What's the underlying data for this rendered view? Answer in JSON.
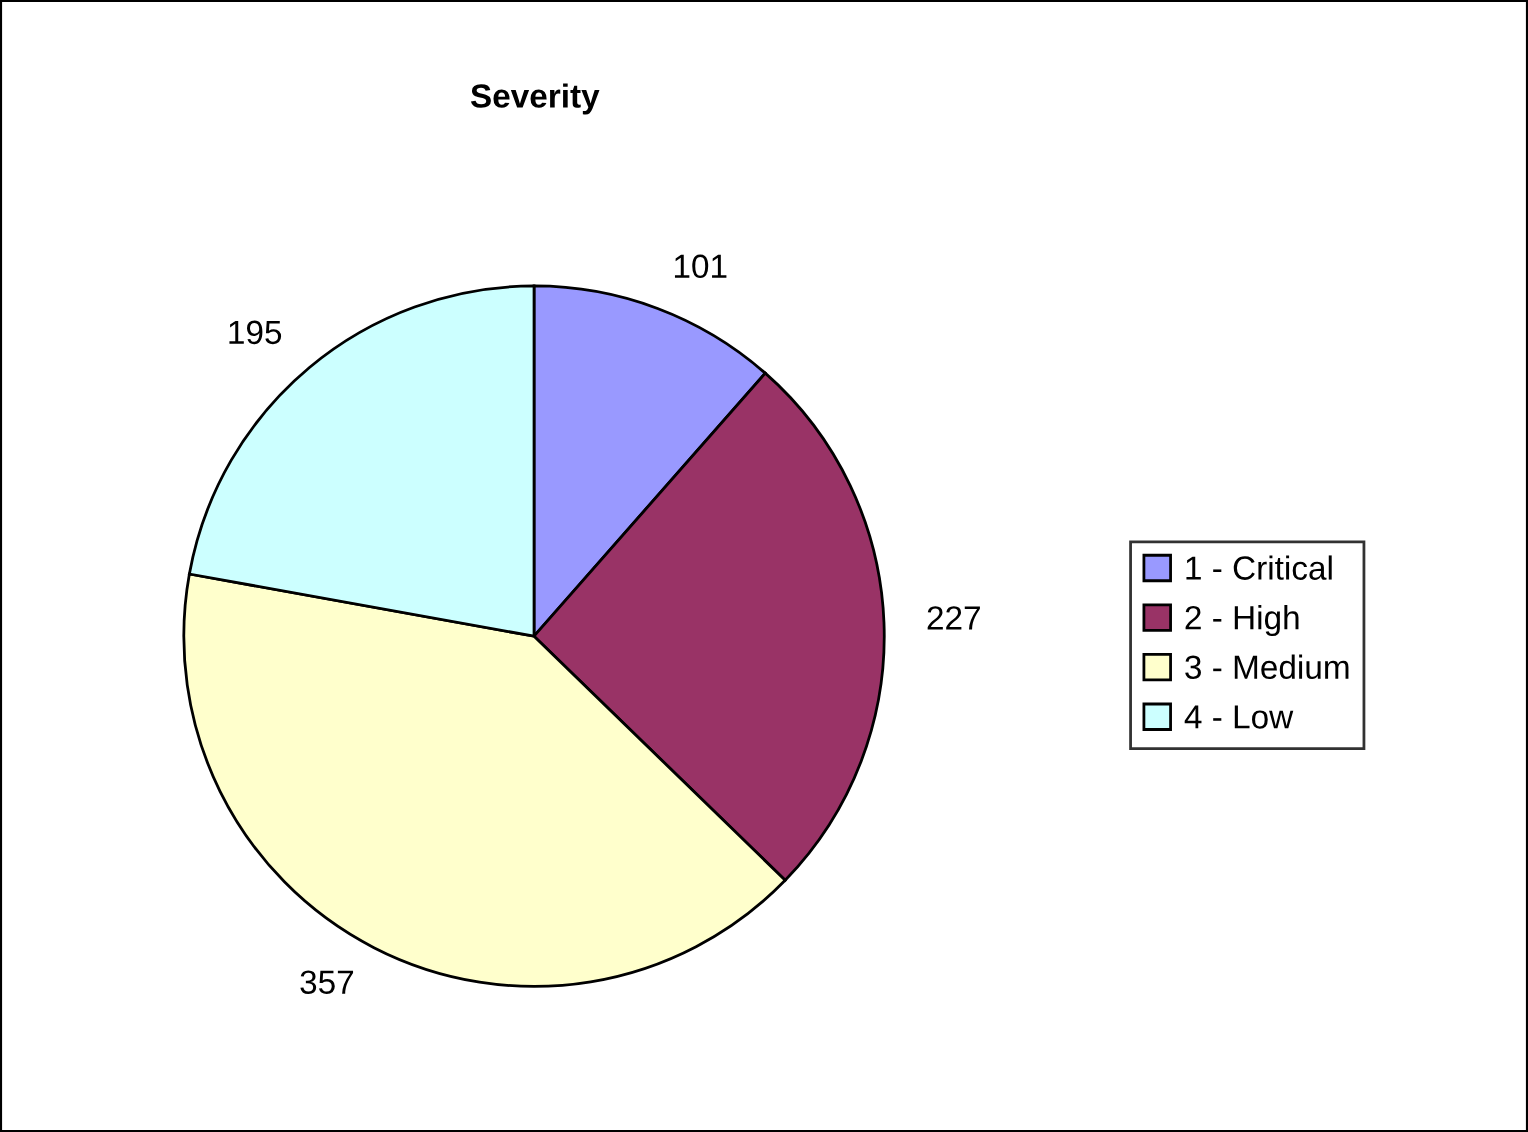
{
  "chart_data": {
    "type": "pie",
    "title": "Severity",
    "categories": [
      "1 - Critical",
      "2 - High",
      "3 - Medium",
      "4 - Low"
    ],
    "values": [
      101,
      227,
      357,
      195
    ],
    "colors": [
      "#9999ff",
      "#993366",
      "#ffffcc",
      "#ccffff"
    ],
    "data_labels": true,
    "legend": "right"
  }
}
